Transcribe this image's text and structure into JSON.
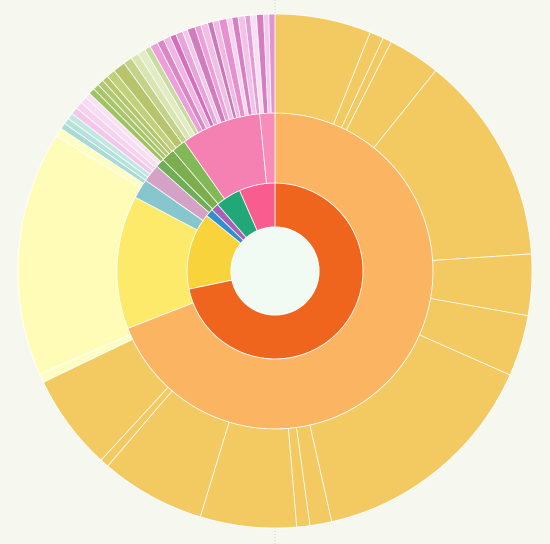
{
  "chart_data": {
    "type": "sunburst",
    "title": "",
    "background": "#f6f8f0",
    "center_color": "#f2fbf3",
    "start_angle_deg": 0,
    "rings": [
      {
        "level": 1,
        "segments": [
          {
            "value": 76.0,
            "color": "#f0651d"
          },
          {
            "value": 15.0,
            "color": "#f8d33b"
          },
          {
            "value": 1.5,
            "color": "#2f8fd0"
          },
          {
            "value": 1.5,
            "color": "#a760b8"
          },
          {
            "value": 5.0,
            "color": "#22a878"
          },
          {
            "value": 7.0,
            "color": "#f95d8f"
          }
        ]
      },
      {
        "level": 2,
        "segments": [
          {
            "value": 76.0,
            "color": "#fbb462"
          },
          {
            "value": 15.0,
            "color": "#feea6a"
          },
          {
            "value": 2.2,
            "color": "#87c6cd"
          },
          {
            "value": 2.0,
            "color": "#d3a2c4"
          },
          {
            "value": 1.0,
            "color": "#6fae57"
          },
          {
            "value": 1.5,
            "color": "#7cae4f"
          },
          {
            "value": 1.6,
            "color": "#83b856"
          },
          {
            "value": 9.0,
            "color": "#f580b2"
          },
          {
            "value": 1.7,
            "color": "#f78db9"
          }
        ]
      },
      {
        "level": 3,
        "segments": [
          {
            "value": 11.0,
            "color": "#f3c961"
          },
          {
            "value": 1.6,
            "color": "#f3c961"
          },
          {
            "value": 1.0,
            "color": "#f3c961"
          },
          {
            "value": 6.0,
            "color": "#f3c961"
          },
          {
            "value": 24.0,
            "color": "#f3c961"
          },
          {
            "value": 7.0,
            "color": "#f3c961"
          },
          {
            "value": 7.0,
            "color": "#f3c961"
          },
          {
            "value": 27.0,
            "color": "#f3c961"
          },
          {
            "value": 2.5,
            "color": "#f3c961"
          },
          {
            "value": 1.5,
            "color": "#f3c961"
          },
          {
            "value": 11.0,
            "color": "#f3c961"
          },
          {
            "value": 12.0,
            "color": "#f3c961"
          },
          {
            "value": 1.0,
            "color": "#f3c961"
          },
          {
            "value": 11.0,
            "color": "#f3c961"
          },
          {
            "value": 1.0,
            "color": "#fefdc4"
          },
          {
            "value": 28.0,
            "color": "#fefcb6"
          },
          {
            "value": 1.0,
            "color": "#fefdc4"
          },
          {
            "value": 0.7,
            "color": "#a8dbd4"
          },
          {
            "value": 0.7,
            "color": "#b6e2dc"
          },
          {
            "value": 0.7,
            "color": "#c2e7e1"
          },
          {
            "value": 0.8,
            "color": "#f2c8ea"
          },
          {
            "value": 0.8,
            "color": "#f5d3ef"
          },
          {
            "value": 0.8,
            "color": "#f8dcf3"
          },
          {
            "value": 0.6,
            "color": "#f9e0f5"
          },
          {
            "value": 0.7,
            "color": "#a1c260"
          },
          {
            "value": 0.7,
            "color": "#a9c46a"
          },
          {
            "value": 0.7,
            "color": "#b1c873"
          },
          {
            "value": 0.7,
            "color": "#b6c66a"
          },
          {
            "value": 1.0,
            "color": "#bfd17d"
          },
          {
            "value": 1.4,
            "color": "#b8c46c"
          },
          {
            "value": 1.0,
            "color": "#c2d288"
          },
          {
            "value": 0.9,
            "color": "#d9e5b0"
          },
          {
            "value": 0.9,
            "color": "#e2ebc3"
          },
          {
            "value": 0.7,
            "color": "#c9dca0"
          },
          {
            "value": 0.9,
            "color": "#ec9fda"
          },
          {
            "value": 0.8,
            "color": "#d987c5"
          },
          {
            "value": 0.8,
            "color": "#f1b5e3"
          },
          {
            "value": 0.7,
            "color": "#d46fbd"
          },
          {
            "value": 0.8,
            "color": "#e6a4d8"
          },
          {
            "value": 0.6,
            "color": "#f4c6ea"
          },
          {
            "value": 0.9,
            "color": "#d27cc0"
          },
          {
            "value": 0.7,
            "color": "#ee9fda"
          },
          {
            "value": 0.8,
            "color": "#f1bfe6"
          },
          {
            "value": 0.6,
            "color": "#c97ab8"
          },
          {
            "value": 0.7,
            "color": "#f2b8e4"
          },
          {
            "value": 0.9,
            "color": "#e88fd0"
          },
          {
            "value": 0.6,
            "color": "#f7d3ef"
          },
          {
            "value": 0.7,
            "color": "#d77ec4"
          },
          {
            "value": 0.8,
            "color": "#f3c2e8"
          },
          {
            "value": 0.6,
            "color": "#e49ad3"
          },
          {
            "value": 0.7,
            "color": "#f9dff4"
          },
          {
            "value": 0.8,
            "color": "#d67cc1"
          },
          {
            "value": 0.6,
            "color": "#f4c9ec"
          },
          {
            "value": 0.7,
            "color": "#e393d2"
          }
        ]
      }
    ]
  }
}
